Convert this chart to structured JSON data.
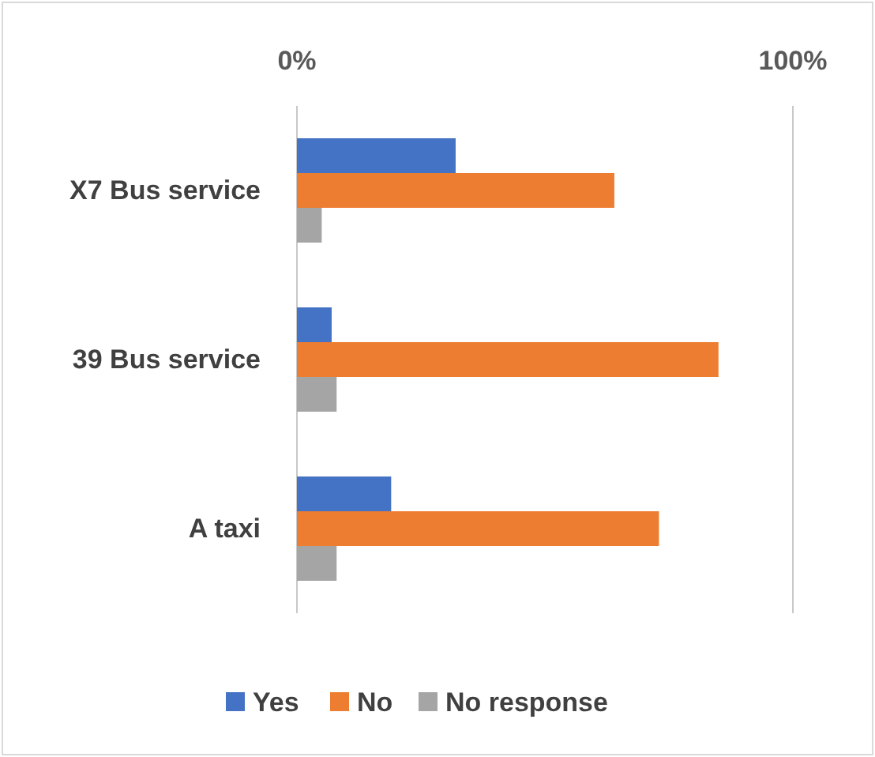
{
  "chart_data": {
    "type": "bar",
    "orientation": "horizontal",
    "categories": [
      "X7 Bus service",
      "39 Bus service",
      "A taxi"
    ],
    "series": [
      {
        "name": "Yes",
        "color": "#4472c4",
        "values": [
          32,
          7,
          19
        ]
      },
      {
        "name": "No",
        "color": "#ed7d31",
        "values": [
          64,
          85,
          73
        ]
      },
      {
        "name": "No response",
        "color": "#a5a5a5",
        "values": [
          5,
          8,
          8
        ]
      }
    ],
    "xlim": [
      0,
      100
    ],
    "xticks": [
      {
        "value": 0,
        "label": "0%"
      },
      {
        "value": 100,
        "label": "100%"
      }
    ],
    "legend": "bottom"
  }
}
